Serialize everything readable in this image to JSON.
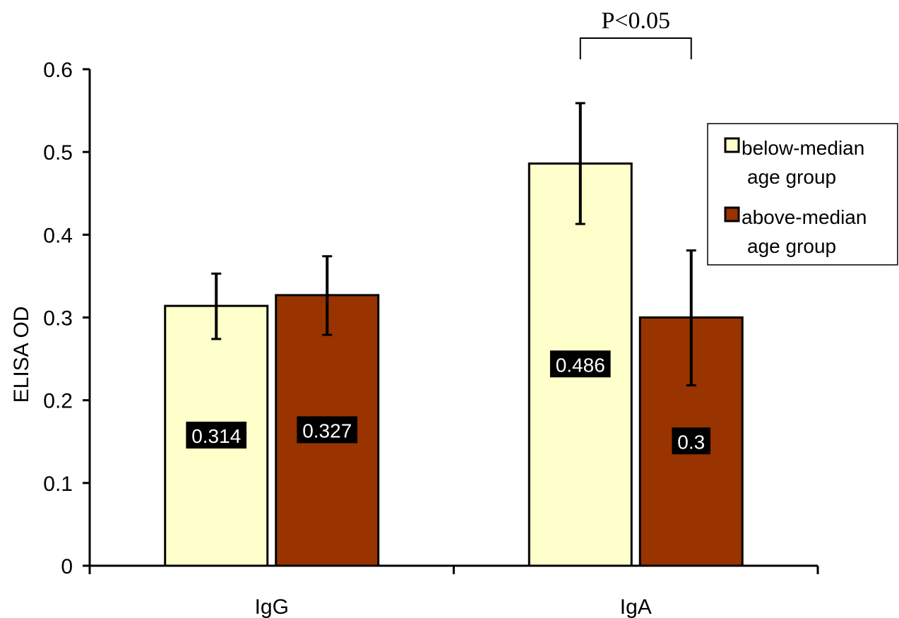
{
  "chart_data": {
    "type": "bar",
    "title": "",
    "xlabel": "",
    "ylabel": "ELISA OD",
    "ylim": [
      0,
      0.6
    ],
    "yticks": [
      "0",
      "0.1",
      "0.2",
      "0.3",
      "0.4",
      "0.5",
      "0.6"
    ],
    "categories": [
      "IgG",
      "IgA"
    ],
    "series": [
      {
        "name": "below-median age group",
        "color": "#FFFFCC",
        "values": [
          0.314,
          0.486
        ],
        "labels": [
          "0.314",
          "0.486"
        ],
        "error_low": [
          0.274,
          0.413
        ],
        "error_high": [
          0.353,
          0.559
        ]
      },
      {
        "name": "above-median age group",
        "color": "#993300",
        "values": [
          0.327,
          0.3
        ],
        "labels": [
          "0.327",
          "0.3"
        ],
        "error_low": [
          0.279,
          0.218
        ],
        "error_high": [
          0.374,
          0.381
        ]
      }
    ],
    "legend": {
      "position": "right",
      "entries": [
        {
          "line1": "below-median",
          "line2": "age group",
          "color": "#FFFFCC"
        },
        {
          "line1": "above-median",
          "line2": "age group",
          "color": "#993300"
        }
      ]
    },
    "annotations": [
      {
        "text": "P<0.05",
        "category": "IgA",
        "type": "significance-bracket"
      }
    ],
    "grid": false
  }
}
